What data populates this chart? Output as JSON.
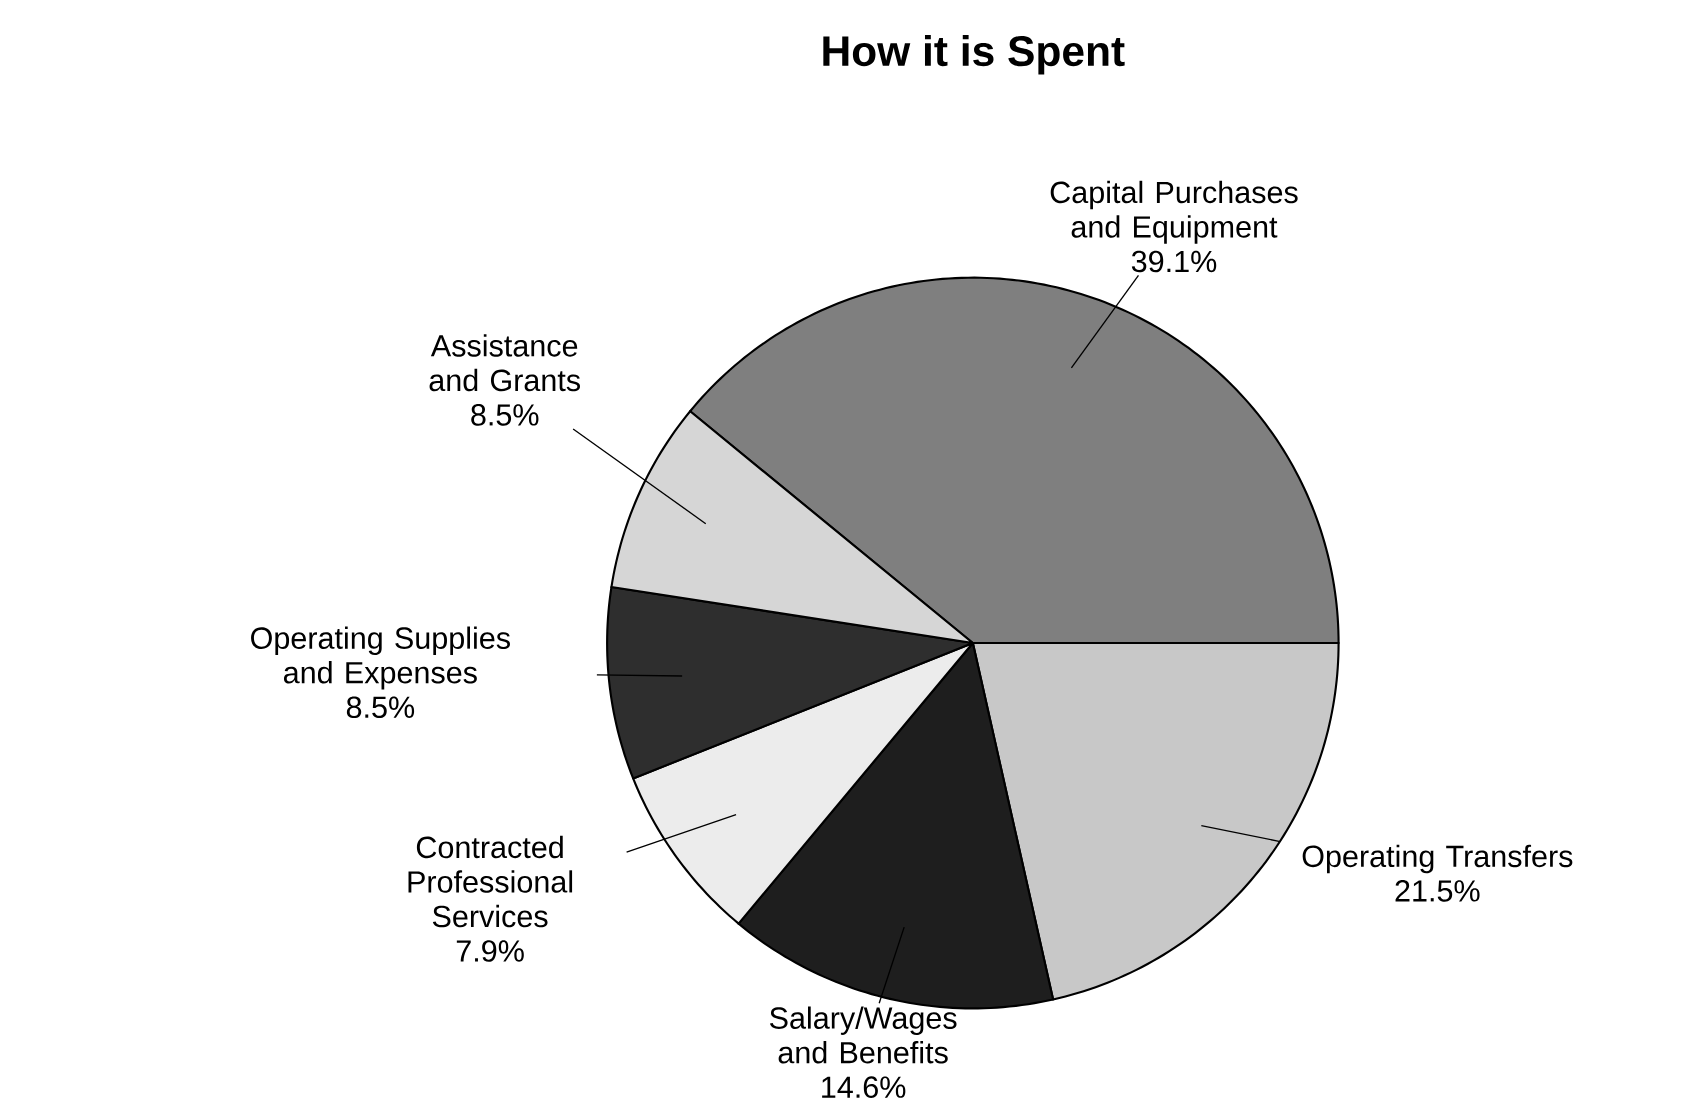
{
  "chart_data": {
    "type": "pie",
    "title": "How it is Spent",
    "categories": [
      "Capital Purchases and Equipment",
      "Operating Transfers",
      "Salary/Wages and Benefits",
      "Contracted Professional Services",
      "Operating Supplies and Expenses",
      "Assistance and Grants"
    ],
    "values": [
      39.1,
      21.5,
      14.6,
      7.9,
      8.5,
      8.5
    ],
    "value_labels": [
      "39.1%",
      "21.5%",
      "14.6%",
      "7.9%",
      "8.5%",
      "8.5%"
    ],
    "colors": [
      "#7f7f7f",
      "#c8c8c8",
      "#1e1e1e",
      "#ececec",
      "#2e2e2e",
      "#d6d6d6"
    ]
  }
}
